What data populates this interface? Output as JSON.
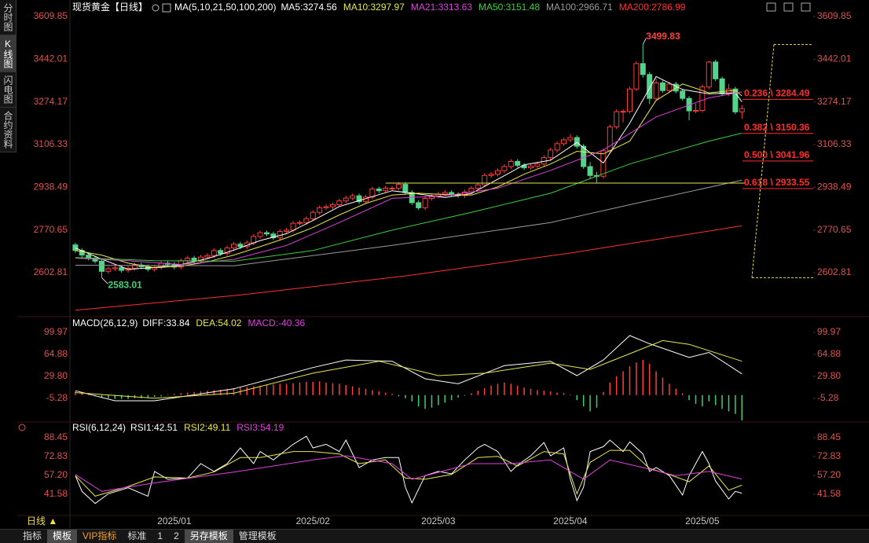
{
  "sidebar": {
    "tabs": [
      "分时图",
      "K线图",
      "闪电图",
      "合约资料"
    ]
  },
  "toolbar": {
    "period": "日线 ▲",
    "tabs": [
      "指标",
      "模板",
      "VIP指标",
      "标准",
      "1",
      "2",
      "另存模板",
      "管理模板"
    ]
  },
  "chart_data": [
    {
      "type": "candlestick",
      "title": "现货黄金【日线】",
      "indicator": "MA(5,10,21,50,100,200)",
      "up_color": "#ff3b3b",
      "down_color": "#54d38a",
      "xlim": [
        -0.7,
        111.8
      ],
      "xticks": [
        {
          "value": 15,
          "label": "2025/01"
        },
        {
          "value": 36,
          "label": "2025/02"
        },
        {
          "value": 55,
          "label": "2025/03"
        },
        {
          "value": 75,
          "label": "2025/04"
        },
        {
          "value": 95,
          "label": "2025/05"
        }
      ],
      "ylim": [
        2439,
        3644
      ],
      "yticks": [
        3609.85,
        3442.01,
        3274.17,
        3106.33,
        2938.49,
        2770.65,
        2602.81
      ],
      "open": [
        2712,
        2690,
        2672,
        2660,
        2648,
        2608,
        2618,
        2622,
        2612,
        2620,
        2633,
        2626,
        2616,
        2624,
        2640,
        2636,
        2625,
        2650,
        2660,
        2648,
        2664,
        2670,
        2690,
        2678,
        2700,
        2715,
        2705,
        2720,
        2745,
        2760,
        2755,
        2740,
        2765,
        2770,
        2797,
        2800,
        2815,
        2840,
        2858,
        2862,
        2870,
        2885,
        2896,
        2905,
        2882,
        2900,
        2932,
        2925,
        2935,
        2935,
        2950,
        2918,
        2878,
        2858,
        2895,
        2905,
        2912,
        2918,
        2910,
        2906,
        2920,
        2935,
        2948,
        2985,
        2990,
        3004,
        3020,
        3040,
        3025,
        3015,
        3022,
        3030,
        3055,
        3085,
        3110,
        3125,
        3134,
        3100,
        3020,
        2985,
        2982,
        3082,
        3176,
        3236,
        3237,
        3325,
        3425,
        3382,
        3288,
        3349,
        3319,
        3344,
        3317,
        3288,
        3239,
        3241,
        3333,
        3431,
        3365,
        3306,
        3325,
        3235
      ],
      "high": [
        2721,
        2699,
        2681,
        2669,
        2655,
        2627,
        2631,
        2631,
        2629,
        2642,
        2642,
        2635,
        2633,
        2649,
        2649,
        2645,
        2659,
        2669,
        2669,
        2673,
        2679,
        2699,
        2699,
        2709,
        2724,
        2724,
        2729,
        2754,
        2769,
        2769,
        2764,
        2774,
        2779,
        2806,
        2809,
        2824,
        2849,
        2867,
        2871,
        2879,
        2894,
        2905,
        2914,
        2914,
        2909,
        2941,
        2941,
        2944,
        2944,
        2959,
        2959,
        2927,
        2887,
        2904,
        2914,
        2921,
        2927,
        2927,
        2919,
        2929,
        2944,
        2957,
        2994,
        2999,
        3013,
        3029,
        3049,
        3049,
        3034,
        3031,
        3039,
        3064,
        3094,
        3119,
        3134,
        3148,
        3143,
        3109,
        3038,
        3000,
        3091,
        3185,
        3245,
        3246,
        3334,
        3434,
        3499.83,
        3392,
        3367,
        3358,
        3353,
        3353,
        3326,
        3297,
        3268,
        3342,
        3436,
        3440,
        3374,
        3345,
        3334,
        3262
      ],
      "low": [
        2681,
        2663,
        2651,
        2639,
        2583.01,
        2599,
        2609,
        2603,
        2603,
        2611,
        2617,
        2607,
        2607,
        2615,
        2627,
        2616,
        2616,
        2641,
        2639,
        2639,
        2655,
        2661,
        2669,
        2669,
        2691,
        2696,
        2696,
        2711,
        2736,
        2746,
        2731,
        2731,
        2756,
        2761,
        2788,
        2791,
        2806,
        2831,
        2849,
        2853,
        2861,
        2876,
        2887,
        2873,
        2873,
        2891,
        2916,
        2916,
        2926,
        2926,
        2909,
        2869,
        2849,
        2849,
        2886,
        2896,
        2903,
        2901,
        2897,
        2897,
        2911,
        2926,
        2939,
        2976,
        2981,
        2995,
        3011,
        3016,
        3006,
        3006,
        3013,
        3021,
        3046,
        3076,
        3101,
        3116,
        3091,
        3011,
        2971,
        2957,
        2973,
        3073,
        3167,
        3194,
        3228,
        3316,
        3370,
        3266,
        3279,
        3310,
        3310,
        3308,
        3279,
        3202,
        3230,
        3232,
        3324,
        3356,
        3297,
        3297,
        3226,
        3208
      ],
      "close": [
        2690,
        2672,
        2660,
        2648,
        2608,
        2618,
        2622,
        2612,
        2620,
        2633,
        2626,
        2616,
        2624,
        2640,
        2636,
        2625,
        2650,
        2660,
        2648,
        2664,
        2670,
        2690,
        2678,
        2700,
        2715,
        2705,
        2720,
        2745,
        2760,
        2755,
        2740,
        2765,
        2770,
        2797,
        2800,
        2815,
        2840,
        2858,
        2862,
        2870,
        2885,
        2896,
        2905,
        2882,
        2900,
        2932,
        2925,
        2935,
        2935,
        2950,
        2918,
        2878,
        2858,
        2895,
        2905,
        2912,
        2918,
        2910,
        2906,
        2920,
        2935,
        2948,
        2985,
        2990,
        3004,
        3020,
        3040,
        3025,
        3015,
        3022,
        3030,
        3055,
        3085,
        3110,
        3125,
        3134,
        3100,
        3020,
        2985,
        2982,
        3082,
        3176,
        3236,
        3237,
        3325,
        3425,
        3382,
        3288,
        3349,
        3319,
        3344,
        3317,
        3288,
        3239,
        3241,
        3333,
        3431,
        3365,
        3306,
        3325,
        3235,
        3248
      ],
      "series": [
        {
          "name": "MA5:3274.56",
          "color": "#ffffff",
          "x": [
            0,
            4,
            8,
            12,
            16,
            20,
            24,
            28,
            32,
            36,
            40,
            44,
            48,
            52,
            56,
            60,
            64,
            68,
            72,
            76,
            80,
            84,
            88,
            92,
            96,
            100,
            101
          ],
          "values": [
            2700,
            2656,
            2616,
            2623,
            2635,
            2658,
            2691,
            2729,
            2756,
            2808,
            2863,
            2894,
            2925,
            2912,
            2898,
            2914,
            2970,
            3027,
            3045,
            3115,
            3034,
            3191,
            3374,
            3323,
            3306,
            3310,
            3274.56
          ]
        },
        {
          "name": "MA10:3297.97",
          "color": "#e8e84a",
          "x": [
            0,
            4,
            8,
            12,
            16,
            20,
            24,
            28,
            32,
            36,
            40,
            44,
            48,
            52,
            56,
            60,
            64,
            68,
            72,
            76,
            80,
            84,
            88,
            92,
            96,
            100,
            101
          ],
          "values": [
            2690,
            2672,
            2640,
            2622,
            2628,
            2645,
            2672,
            2705,
            2740,
            2780,
            2830,
            2875,
            2908,
            2915,
            2910,
            2908,
            2940,
            2990,
            3030,
            3080,
            3070,
            3120,
            3280,
            3345,
            3310,
            3320,
            3297.97
          ]
        },
        {
          "name": "MA21:3313.63",
          "color": "#e040e0",
          "x": [
            0,
            8,
            16,
            24,
            32,
            40,
            48,
            56,
            64,
            72,
            80,
            88,
            96,
            101
          ],
          "values": [
            2660,
            2650,
            2635,
            2655,
            2710,
            2800,
            2895,
            2905,
            2935,
            3005,
            3085,
            3215,
            3290,
            3313.63
          ]
        },
        {
          "name": "MA50:3151.48",
          "color": "#3ccf3c",
          "x": [
            0,
            12,
            24,
            36,
            48,
            60,
            72,
            84,
            96,
            101
          ],
          "values": [
            2662,
            2650,
            2648,
            2690,
            2770,
            2840,
            2915,
            3030,
            3120,
            3151.48
          ]
        },
        {
          "name": "MA100:2966.71",
          "color": "#9a9a9a",
          "x": [
            0,
            24,
            48,
            72,
            84,
            101
          ],
          "values": [
            2632,
            2630,
            2710,
            2800,
            2870,
            2966.71
          ]
        },
        {
          "name": "MA200:2786.99",
          "color": "#ff3030",
          "x": [
            0,
            25,
            50,
            75,
            101
          ],
          "values": [
            2455,
            2515,
            2590,
            2680,
            2786.99
          ]
        }
      ],
      "support_line": {
        "value": 2955,
        "x": [
          47,
          101.5
        ],
        "color": "#e6e64a"
      },
      "fibonacci": {
        "high": 3499.83,
        "low": 2583.01,
        "color": "#ff2d2d",
        "line_color": "#f0e040",
        "high_color": "#ff4040",
        "low_color": "#45d07a",
        "levels": [
          {
            "value": 3284.49,
            "label": "0.236 \\ 3284.49"
          },
          {
            "value": 3150.36,
            "label": "0.382 \\ 3150.36"
          },
          {
            "value": 3041.96,
            "label": "0.500 \\ 3041.96"
          },
          {
            "value": 2933.55,
            "label": "0.618 \\ 2933.55"
          }
        ]
      }
    },
    {
      "type": "macd",
      "title": "MACD(26,12,9)",
      "up_color": "#ff3b3b",
      "down_color": "#3ccf6a",
      "ylim": [
        -40.4,
        116.3
      ],
      "yticks": [
        99.97,
        64.88,
        {
          "value": 29.8,
          "label": "29.80"
        },
        -5.28
      ],
      "series": [
        {
          "name": "DIFF:33.84",
          "color": "#ffffff",
          "x": [
            0,
            6,
            12,
            24,
            36,
            41,
            48,
            53,
            58,
            65,
            72,
            76,
            80,
            84,
            87,
            93,
            96,
            101
          ],
          "values": [
            7,
            -9,
            -9,
            10,
            44,
            56,
            54,
            26,
            18,
            47,
            54,
            31,
            56,
            95,
            82,
            60,
            68,
            33.84
          ]
        },
        {
          "name": "DEA:54.02",
          "color": "#e8e84a",
          "x": [
            0,
            12,
            24,
            36,
            46,
            55,
            62,
            72,
            78,
            84,
            89,
            93,
            101
          ],
          "values": [
            4,
            -5,
            3,
            35,
            54,
            31,
            35,
            51,
            41,
            66,
            87,
            81,
            54.02
          ]
        },
        {
          "name": "MACD:-40.36",
          "color": "#e040e0",
          "bars": true,
          "values": [
            6,
            5,
            3,
            -2,
            -4,
            -5,
            -6,
            -6,
            -6,
            -5,
            -5,
            -4,
            -3,
            -2,
            1,
            2,
            3,
            4,
            5,
            6,
            7,
            8,
            9,
            10,
            11,
            12,
            13,
            14,
            15,
            16,
            17,
            18,
            18,
            19,
            20,
            21,
            21,
            22,
            20,
            19,
            18,
            16,
            14,
            12,
            10,
            8,
            6,
            4,
            2,
            -2,
            -5,
            -10,
            -18,
            -22,
            -20,
            -16,
            -12,
            -8,
            -4,
            -1,
            3,
            7,
            11,
            15,
            18,
            20,
            18,
            15,
            12,
            10,
            8,
            7,
            6,
            4,
            3,
            1,
            -8,
            -18,
            -26,
            -20,
            5,
            20,
            30,
            38,
            46,
            52,
            56,
            50,
            38,
            28,
            18,
            10,
            3,
            -8,
            -14,
            -18,
            -10,
            -16,
            -22,
            -26,
            -30,
            -40.36
          ]
        }
      ]
    },
    {
      "type": "line",
      "title": "RSI(6,12,24)",
      "ylim": [
        24.66,
        96.26
      ],
      "yticks": [
        88.45,
        72.83,
        {
          "value": 57.2,
          "label": "57.20"
        },
        41.58
      ],
      "series": [
        {
          "name": "RSI1:42.51",
          "color": "#ffffff",
          "x": [
            0,
            1,
            3,
            5,
            8,
            11,
            12,
            14,
            17,
            19,
            21,
            23,
            25,
            27,
            28,
            30,
            33,
            35,
            36,
            38,
            40,
            41,
            43,
            45,
            47,
            49,
            50,
            51,
            53,
            55,
            57,
            59,
            61,
            62,
            64,
            66,
            67,
            69,
            71,
            72,
            74,
            75,
            76,
            77,
            78,
            80,
            81,
            83,
            84,
            86,
            87,
            88,
            90,
            92,
            93,
            95,
            96,
            97,
            99,
            100,
            101
          ],
          "values": [
            57,
            44,
            34,
            42,
            47,
            40,
            60.5,
            54,
            55,
            67,
            60.5,
            67,
            80,
            67,
            77,
            70,
            83,
            89.7,
            80,
            83,
            77,
            86.5,
            63.7,
            70,
            72,
            72,
            47.5,
            34.5,
            57,
            60.5,
            58.5,
            70,
            80,
            83,
            77,
            60.5,
            65.7,
            73.5,
            84.5,
            73.5,
            80,
            54,
            36.4,
            47.5,
            77,
            81,
            86.5,
            77,
            85,
            75,
            60.5,
            63.7,
            57,
            41,
            57,
            77,
            67,
            52.6,
            37.7,
            44,
            42.51
          ]
        },
        {
          "name": "RSI2:49.11",
          "color": "#e8e84a",
          "x": [
            0,
            3,
            8,
            12,
            17,
            21,
            25,
            28,
            33,
            36,
            40,
            43,
            47,
            50,
            53,
            57,
            61,
            64,
            67,
            71,
            74,
            76,
            78,
            81,
            84,
            87,
            90,
            93,
            96,
            99,
            101
          ],
          "values": [
            57,
            40,
            48,
            56,
            55,
            60,
            72,
            72,
            77,
            77,
            75,
            67,
            70,
            55,
            54,
            58,
            72,
            73,
            65,
            77,
            75,
            42,
            68,
            78,
            78,
            63,
            58,
            52,
            65,
            45,
            49.11
          ]
        },
        {
          "name": "RSI3:54.19",
          "color": "#e040e0",
          "x": [
            0,
            4,
            12,
            24,
            36,
            41,
            48,
            51,
            60,
            66,
            72,
            77,
            81,
            86,
            91,
            96,
            101
          ],
          "values": [
            58,
            44,
            51,
            60,
            70,
            73.5,
            67,
            54,
            67,
            67,
            70,
            54,
            70,
            63.7,
            57,
            60.5,
            54.19
          ]
        }
      ]
    }
  ]
}
